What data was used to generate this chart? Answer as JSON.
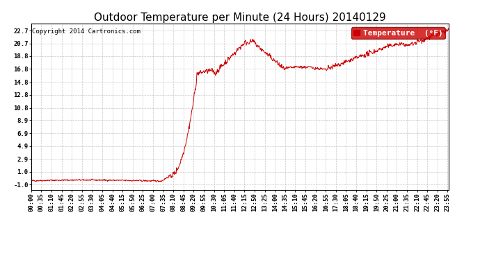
{
  "title": "Outdoor Temperature per Minute (24 Hours) 20140129",
  "copyright_text": "Copyright 2014 Cartronics.com",
  "legend_label": "Temperature  (°F)",
  "line_color": "#cc0000",
  "background_color": "#ffffff",
  "grid_color": "#c8c8c8",
  "yticks": [
    -1.0,
    1.0,
    2.9,
    4.9,
    6.9,
    8.9,
    10.8,
    12.8,
    14.8,
    16.8,
    18.8,
    20.7,
    22.7
  ],
  "ylim": [
    -1.8,
    23.8
  ],
  "xtick_labels": [
    "00:00",
    "00:35",
    "01:10",
    "01:45",
    "02:20",
    "02:55",
    "03:30",
    "04:05",
    "04:40",
    "05:15",
    "05:50",
    "06:25",
    "07:00",
    "07:35",
    "08:10",
    "08:45",
    "09:20",
    "09:55",
    "10:30",
    "11:05",
    "11:40",
    "12:15",
    "12:50",
    "13:25",
    "14:00",
    "14:35",
    "15:10",
    "15:45",
    "16:20",
    "16:55",
    "17:30",
    "18:05",
    "18:40",
    "19:15",
    "19:50",
    "20:25",
    "21:00",
    "21:35",
    "22:10",
    "22:45",
    "23:20",
    "23:55"
  ],
  "title_fontsize": 11,
  "tick_fontsize": 6.5,
  "copyright_fontsize": 6.5,
  "legend_fontsize": 8
}
